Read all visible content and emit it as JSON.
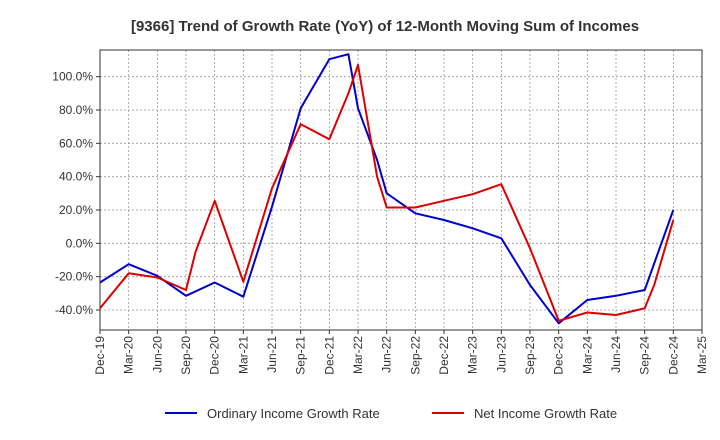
{
  "chart_data": {
    "type": "line",
    "title": "[9366]  Trend of Growth Rate (YoY) of 12-Month Moving Sum of Incomes",
    "xlabel": "",
    "ylabel": "",
    "x_tick_labels": [
      "Dec-19",
      "Mar-20",
      "Jun-20",
      "Sep-20",
      "Dec-20",
      "Mar-21",
      "Jun-21",
      "Sep-21",
      "Dec-21",
      "Mar-22",
      "Jun-22",
      "Sep-22",
      "Dec-22",
      "Mar-23",
      "Jun-23",
      "Sep-23",
      "Dec-23",
      "Mar-24",
      "Jun-24",
      "Sep-24",
      "Dec-24",
      "Mar-25"
    ],
    "y_ticks": [
      -40,
      -20,
      0,
      20,
      40,
      60,
      80,
      100
    ],
    "y_tick_labels": [
      "-40.0%",
      "-20.0%",
      "0.0%",
      "20.0%",
      "40.0%",
      "60.0%",
      "80.0%",
      "100.0%"
    ],
    "ylim": [
      -52,
      116
    ],
    "grid": true,
    "legend_position": "bottom",
    "series": [
      {
        "name": "Ordinary Income Growth Rate",
        "color": "#0000cc",
        "points": [
          [
            "Dec-19",
            -23.5
          ],
          [
            "Mar-20",
            -12.5
          ],
          [
            "Jun-20",
            -19.5
          ],
          [
            "Sep-20",
            -31.5
          ],
          [
            "Dec-20",
            -23.5
          ],
          [
            "Mar-21",
            -32.0
          ],
          [
            "Jun-21",
            22.0
          ],
          [
            "Sep-21",
            81.0
          ],
          [
            "Dec-21",
            110.5
          ],
          [
            "Feb-22",
            113.5
          ],
          [
            "Mar-22",
            81.0
          ],
          [
            "May-22",
            50.0
          ],
          [
            "Jun-22",
            30.0
          ],
          [
            "Sep-22",
            18.0
          ],
          [
            "Dec-22",
            14.0
          ],
          [
            "Mar-23",
            9.0
          ],
          [
            "Jun-23",
            3.0
          ],
          [
            "Sep-23",
            -25.0
          ],
          [
            "Dec-23",
            -48.0
          ],
          [
            "Mar-24",
            -34.0
          ],
          [
            "Jun-24",
            -31.5
          ],
          [
            "Sep-24",
            -28.0
          ],
          [
            "Dec-24",
            20.0
          ]
        ]
      },
      {
        "name": "Net Income Growth Rate",
        "color": "#dd0000",
        "points": [
          [
            "Dec-19",
            -39.0
          ],
          [
            "Mar-20",
            -18.0
          ],
          [
            "Jun-20",
            -20.5
          ],
          [
            "Sep-20",
            -28.0
          ],
          [
            "Oct-20",
            -5.0
          ],
          [
            "Dec-20",
            25.5
          ],
          [
            "Mar-21",
            -23.0
          ],
          [
            "Jun-21",
            33.0
          ],
          [
            "Sep-21",
            71.5
          ],
          [
            "Dec-21",
            62.5
          ],
          [
            "Feb-22",
            90.0
          ],
          [
            "Mar-22",
            107.0
          ],
          [
            "May-22",
            40.0
          ],
          [
            "Jun-22",
            21.5
          ],
          [
            "Sep-22",
            21.5
          ],
          [
            "Dec-22",
            25.5
          ],
          [
            "Mar-23",
            29.5
          ],
          [
            "Jun-23",
            35.5
          ],
          [
            "Sep-23",
            -3.0
          ],
          [
            "Dec-23",
            -46.5
          ],
          [
            "Mar-24",
            -41.5
          ],
          [
            "Jun-24",
            -43.0
          ],
          [
            "Sep-24",
            -39.0
          ],
          [
            "Oct-24",
            -25.0
          ],
          [
            "Dec-24",
            14.0
          ]
        ]
      }
    ]
  }
}
